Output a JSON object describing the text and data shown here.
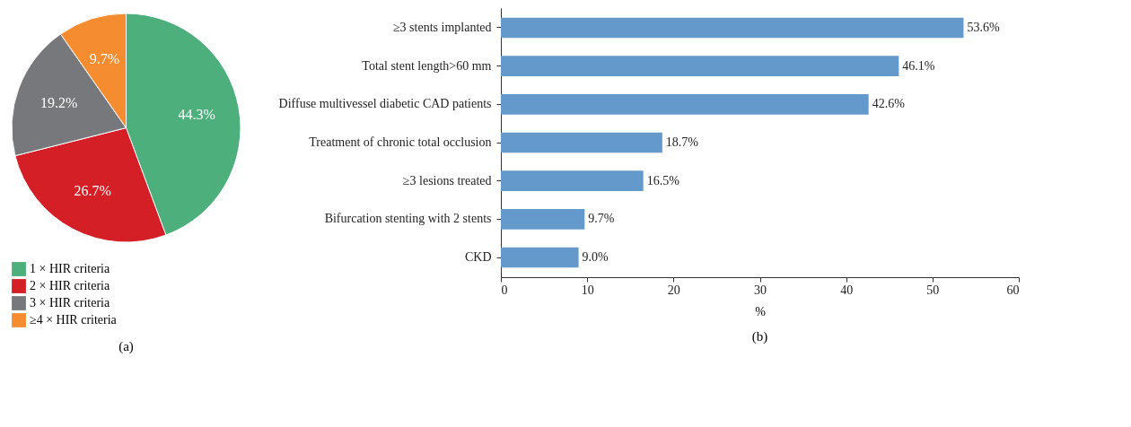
{
  "chart_data": [
    {
      "type": "pie",
      "categories": [
        "1 × HIR criteria",
        "2 × HIR criteria",
        "3 × HIR criteria",
        "≥4 × HIR criteria"
      ],
      "values": [
        44.3,
        26.7,
        19.2,
        9.7
      ],
      "colors": [
        "#4caf7c",
        "#d41f26",
        "#76787b",
        "#f58c30"
      ],
      "value_labels": [
        "44.3%",
        "26.7%",
        "19.2%",
        "9.7%"
      ],
      "legend": "bottom",
      "annotations": [
        "(a)"
      ]
    },
    {
      "type": "bar",
      "orientation": "horizontal",
      "categories": [
        "≥3 stents implanted",
        "Total stent length>60 mm",
        "Diffuse multivessel diabetic CAD patients",
        "Treatment of chronic total occlusion",
        "≥3 lesions treated",
        "Bifurcation stenting with 2 stents",
        "CKD"
      ],
      "values": [
        53.6,
        46.1,
        42.6,
        18.7,
        16.5,
        9.7,
        9.0
      ],
      "color": "#6499cc",
      "value_labels": [
        "53.6%",
        "46.1%",
        "42.6%",
        "18.7%",
        "16.5%",
        "9.7%",
        "9.0%"
      ],
      "xlabel": "%",
      "xlim": [
        0,
        60
      ],
      "xticks": [
        0,
        10,
        20,
        30,
        40,
        50,
        60
      ],
      "grid": false,
      "annotations": [
        "(b)"
      ]
    }
  ]
}
